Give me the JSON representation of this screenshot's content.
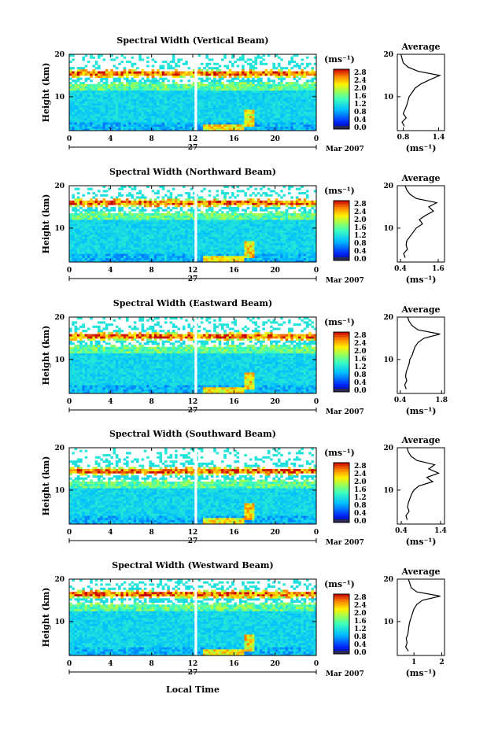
{
  "page": {
    "xlabel": "Local Time",
    "date_label": "Mar 2007",
    "day_label": "27",
    "x_ticks": [
      "0",
      "4",
      "8",
      "12",
      "16",
      "20",
      "0"
    ],
    "ylabel": "Height (km)",
    "y_ticks": [
      "20",
      "10"
    ],
    "colorbar_unit": "(ms⁻¹)",
    "colorbar_ticks": [
      "2.8",
      "2.4",
      "2.0",
      "1.6",
      "1.2",
      "0.8",
      "0.4",
      "0.0"
    ],
    "avg_title": "Average",
    "avg_xlabel": "(ms⁻¹)"
  },
  "chart_data": [
    {
      "type": "heatmap",
      "title": "Spectral Width (Vertical Beam)",
      "x_range_hours": [
        0,
        24
      ],
      "ylim_km": [
        2,
        20
      ],
      "color_range": [
        0.0,
        3.0
      ],
      "features": {
        "peak_height_km": 15.5,
        "peak_time_hours": 17.5,
        "gap_time_hours": 12.3
      },
      "profile": {
        "title": "Average",
        "x_ticks": [
          "0.8",
          "1.4"
        ],
        "xlim": [
          0.7,
          1.5
        ],
        "heights_km": [
          3,
          4,
          5,
          6,
          7,
          8,
          9,
          10,
          11,
          12,
          13,
          14,
          15,
          16,
          17,
          18,
          19,
          20
        ],
        "values": [
          0.82,
          0.78,
          0.85,
          0.8,
          0.83,
          0.86,
          0.88,
          0.9,
          0.95,
          1.0,
          1.1,
          1.25,
          1.42,
          1.05,
          0.88,
          0.8,
          0.78,
          0.76
        ]
      }
    },
    {
      "type": "heatmap",
      "title": "Spectral Width (Northward Beam)",
      "x_range_hours": [
        0,
        24
      ],
      "ylim_km": [
        2,
        20
      ],
      "color_range": [
        0.0,
        3.0
      ],
      "features": {
        "peak_height_km": 16.0,
        "peak_time_hours": 17.5,
        "gap_time_hours": 12.3
      },
      "profile": {
        "title": "Average",
        "x_ticks": [
          "0.4",
          "1.6"
        ],
        "xlim": [
          0.3,
          1.8
        ],
        "heights_km": [
          3,
          4,
          5,
          6,
          7,
          8,
          9,
          10,
          11,
          12,
          13,
          14,
          15,
          16,
          17,
          18,
          19,
          20
        ],
        "values": [
          0.55,
          0.5,
          0.62,
          0.58,
          0.6,
          0.7,
          0.8,
          0.9,
          1.1,
          1.0,
          1.2,
          1.45,
          1.3,
          1.55,
          0.9,
          0.7,
          0.6,
          0.55
        ]
      }
    },
    {
      "type": "heatmap",
      "title": "Spectral Width (Eastward Beam)",
      "x_range_hours": [
        0,
        24
      ],
      "ylim_km": [
        2,
        20
      ],
      "color_range": [
        0.0,
        3.0
      ],
      "features": {
        "peak_height_km": 15.5,
        "peak_time_hours": 17.5,
        "gap_time_hours": 12.3
      },
      "profile": {
        "title": "Average",
        "x_ticks": [
          "0.4",
          "1.8"
        ],
        "xlim": [
          0.3,
          1.9
        ],
        "heights_km": [
          3,
          4,
          5,
          6,
          7,
          8,
          9,
          10,
          11,
          12,
          13,
          14,
          15,
          16,
          17,
          18,
          19,
          20
        ],
        "values": [
          0.6,
          0.55,
          0.62,
          0.58,
          0.6,
          0.65,
          0.7,
          0.72,
          0.8,
          0.85,
          0.9,
          1.0,
          1.2,
          1.75,
          1.0,
          0.8,
          0.7,
          0.65
        ]
      }
    },
    {
      "type": "heatmap",
      "title": "Spectral Width (Southward Beam)",
      "x_range_hours": [
        0,
        24
      ],
      "ylim_km": [
        2,
        20
      ],
      "color_range": [
        0.0,
        3.0
      ],
      "features": {
        "peak_height_km": 14.5,
        "peak_time_hours": 17.5,
        "gap_time_hours": 12.3
      },
      "profile": {
        "title": "Average",
        "x_ticks": [
          "0.4",
          "1.4"
        ],
        "xlim": [
          0.3,
          1.5
        ],
        "heights_km": [
          3,
          4,
          5,
          6,
          7,
          8,
          9,
          10,
          11,
          12,
          13,
          14,
          15,
          16,
          17,
          18,
          19,
          20
        ],
        "values": [
          0.55,
          0.52,
          0.6,
          0.56,
          0.58,
          0.62,
          0.66,
          0.72,
          0.85,
          1.2,
          1.05,
          1.35,
          1.1,
          1.25,
          0.8,
          0.65,
          0.58,
          0.55
        ]
      }
    },
    {
      "type": "heatmap",
      "title": "Spectral Width (Westward Beam)",
      "x_range_hours": [
        0,
        24
      ],
      "ylim_km": [
        2,
        20
      ],
      "color_range": [
        0.0,
        3.0
      ],
      "features": {
        "peak_height_km": 16.5,
        "peak_time_hours": 17.5,
        "gap_time_hours": 12.3
      },
      "profile": {
        "title": "Average",
        "x_ticks": [
          "1",
          "2"
        ],
        "xlim": [
          0.4,
          2.1
        ],
        "heights_km": [
          3,
          4,
          5,
          6,
          7,
          8,
          9,
          10,
          11,
          12,
          13,
          14,
          15,
          16,
          17,
          18,
          19,
          20
        ],
        "values": [
          0.8,
          0.7,
          0.75,
          0.72,
          0.78,
          0.8,
          0.82,
          0.85,
          0.9,
          0.95,
          1.0,
          1.1,
          1.3,
          1.95,
          1.1,
          0.9,
          0.85,
          0.8
        ]
      }
    }
  ]
}
